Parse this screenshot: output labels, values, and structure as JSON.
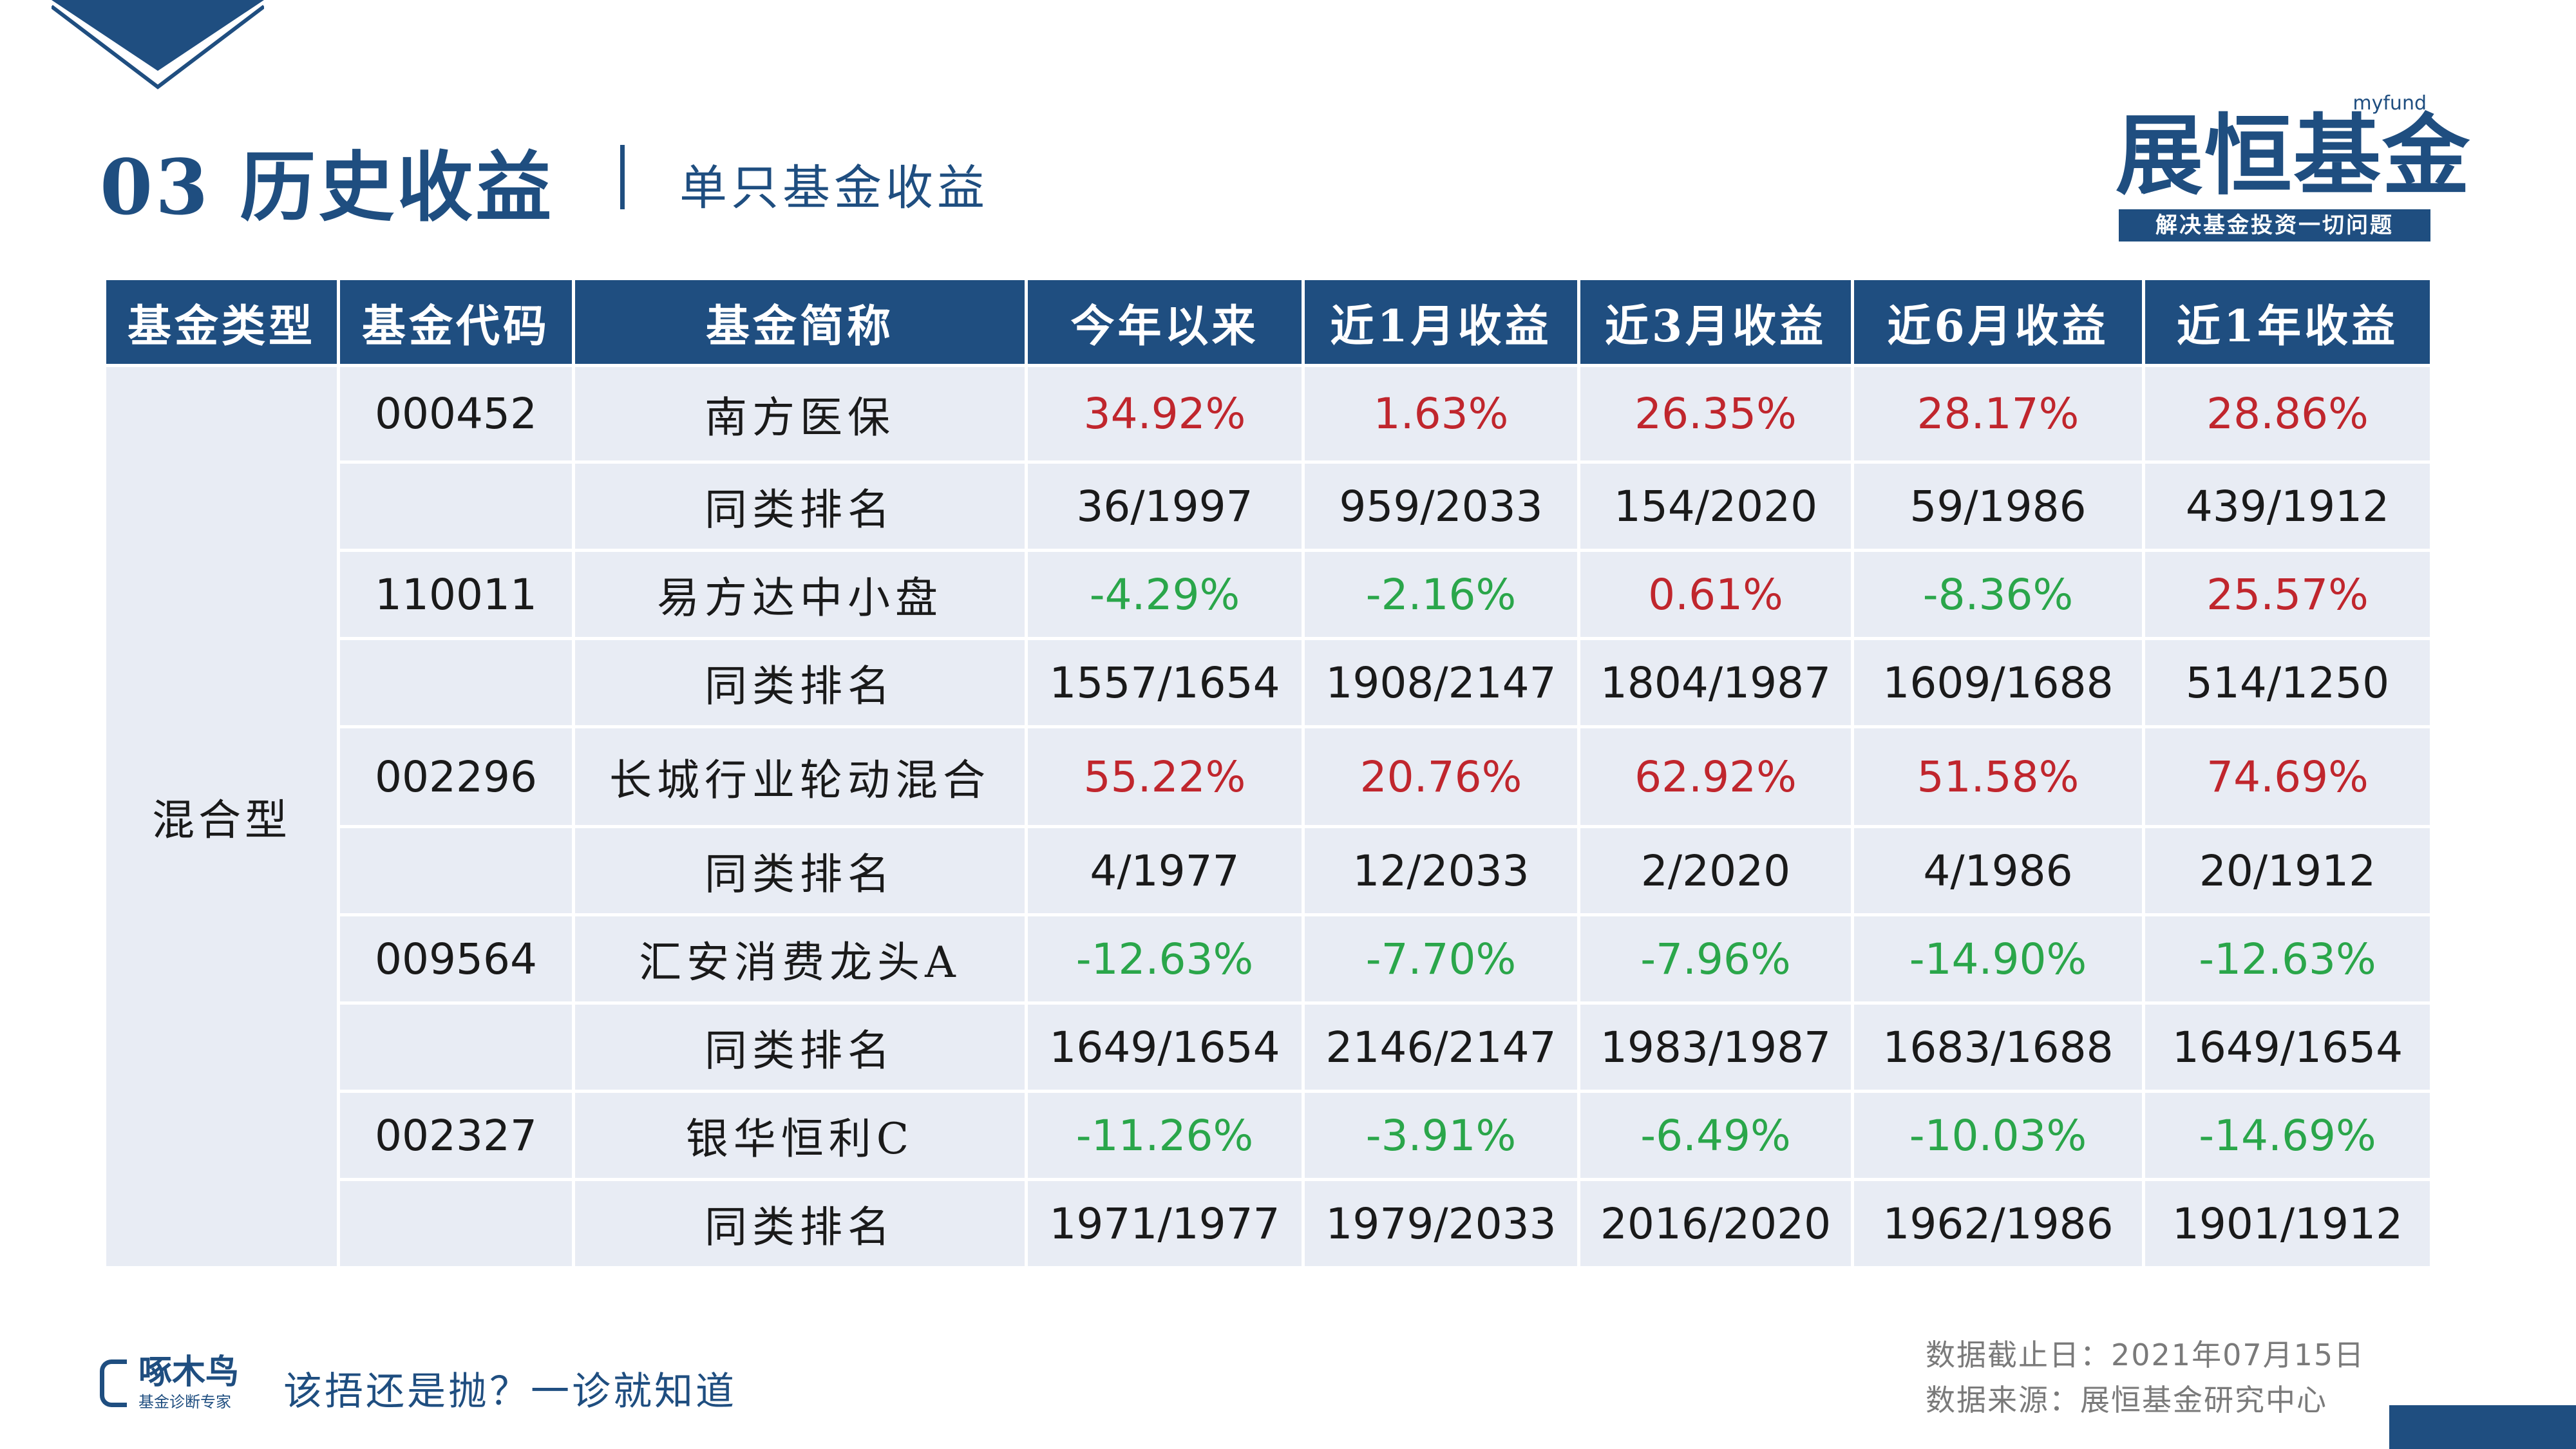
{
  "title": {
    "main": "03 历史收益",
    "sub": "单只基金收益"
  },
  "brand": {
    "tag": "myfund",
    "name": "展恒基金",
    "slogan": "解决基金投资一切问题"
  },
  "colors": {
    "primary": "#1f4e80",
    "positive": "#c0262d",
    "negative": "#2aa64a",
    "cell_bg": "#e8ecf4"
  },
  "table": {
    "headers": [
      "基金类型",
      "基金代码",
      "基金简称",
      "今年以来",
      "近1月收益",
      "近3月收益",
      "近6月收益",
      "近1年收益"
    ],
    "category": "混合型",
    "rows": [
      {
        "code": "000452",
        "name": "南方医保",
        "values": [
          "34.92%",
          "1.63%",
          "26.35%",
          "28.17%",
          "28.86%"
        ]
      },
      {
        "code": "",
        "name": "同类排名",
        "values": [
          "36/1997",
          "959/2033",
          "154/2020",
          "59/1986",
          "439/1912"
        ]
      },
      {
        "code": "110011",
        "name": "易方达中小盘",
        "values": [
          "-4.29%",
          "-2.16%",
          "0.61%",
          "-8.36%",
          "25.57%"
        ]
      },
      {
        "code": "",
        "name": "同类排名",
        "values": [
          "1557/1654",
          "1908/2147",
          "1804/1987",
          "1609/1688",
          "514/1250"
        ]
      },
      {
        "code": "002296",
        "name": "长城行业轮动混合",
        "values": [
          "55.22%",
          "20.76%",
          "62.92%",
          "51.58%",
          "74.69%"
        ]
      },
      {
        "code": "",
        "name": "同类排名",
        "values": [
          "4/1977",
          "12/2033",
          "2/2020",
          "4/1986",
          "20/1912"
        ]
      },
      {
        "code": "009564",
        "name": "汇安消费龙头A",
        "values": [
          "-12.63%",
          "-7.70%",
          "-7.96%",
          "-14.90%",
          "-12.63%"
        ]
      },
      {
        "code": "",
        "name": "同类排名",
        "values": [
          "1649/1654",
          "2146/2147",
          "1983/1987",
          "1683/1688",
          "1649/1654"
        ]
      },
      {
        "code": "002327",
        "name": "银华恒利C",
        "values": [
          "-11.26%",
          "-3.91%",
          "-6.49%",
          "-10.03%",
          "-14.69%"
        ]
      },
      {
        "code": "",
        "name": "同类排名",
        "values": [
          "1971/1977",
          "1979/2033",
          "2016/2020",
          "1962/1986",
          "1901/1912"
        ]
      }
    ]
  },
  "footer": {
    "logo_name": "啄木鸟",
    "logo_sub": "基金诊断专家",
    "slogan": "该捂还是抛？一诊就知道",
    "date_text": "数据截止日：2021年07月15日",
    "source_text": "数据来源：展恒基金研究中心"
  }
}
